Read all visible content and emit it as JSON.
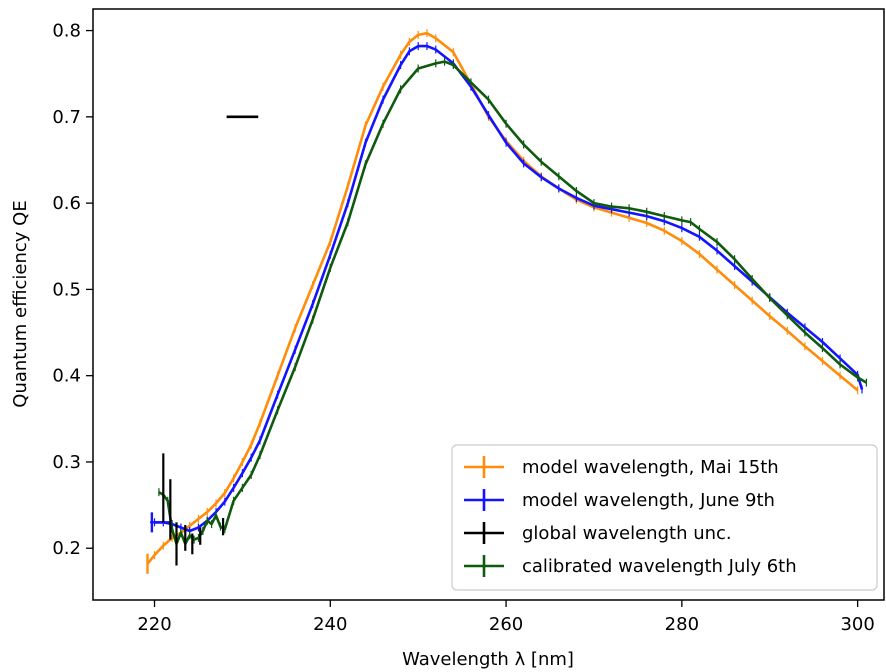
{
  "chart_data": {
    "type": "line",
    "title": "",
    "xlabel": "Wavelength λ [nm]",
    "ylabel": "Quantum efficiency QE",
    "xlim": [
      213,
      303
    ],
    "ylim": [
      0.14,
      0.825
    ],
    "xticks": [
      220,
      240,
      260,
      280,
      300
    ],
    "yticks": [
      0.2,
      0.3,
      0.4,
      0.5,
      0.6,
      0.7,
      0.8
    ],
    "grid": false,
    "legend_position": "lower-right",
    "global_unc": {
      "name": "global wavelength unc.",
      "color": "#000000",
      "y": 0.7,
      "x_range": [
        228.2,
        231.8
      ]
    },
    "series": [
      {
        "name": "model wavelength, Mai 15th",
        "color": "#ff8c0a",
        "x": [
          219.2,
          220.0,
          221.0,
          222.0,
          223.0,
          224.0,
          225.0,
          226.0,
          227.0,
          228.0,
          229.0,
          230.0,
          231.0,
          232.0,
          234.0,
          236.0,
          238.0,
          240.0,
          242.0,
          244.0,
          246.0,
          248.0,
          249.0,
          250.0,
          251.0,
          252.0,
          254.0,
          256.0,
          258.0,
          260.0,
          262.0,
          264.0,
          266.0,
          268.0,
          270.0,
          272.0,
          274.0,
          276.0,
          278.0,
          280.0,
          282.0,
          284.0,
          286.0,
          288.0,
          290.0,
          292.0,
          294.0,
          296.0,
          298.0,
          300.0
        ],
        "y": [
          0.182,
          0.192,
          0.203,
          0.212,
          0.218,
          0.226,
          0.234,
          0.242,
          0.252,
          0.264,
          0.281,
          0.3,
          0.32,
          0.345,
          0.4,
          0.455,
          0.505,
          0.555,
          0.62,
          0.69,
          0.735,
          0.772,
          0.787,
          0.795,
          0.797,
          0.791,
          0.775,
          0.738,
          0.7,
          0.672,
          0.649,
          0.631,
          0.617,
          0.604,
          0.595,
          0.589,
          0.583,
          0.577,
          0.568,
          0.556,
          0.541,
          0.523,
          0.505,
          0.487,
          0.469,
          0.452,
          0.434,
          0.417,
          0.4,
          0.383
        ]
      },
      {
        "name": "model wavelength, June 9th",
        "color": "#1414ff",
        "x": [
          220.0,
          221.0,
          222.0,
          223.0,
          224.0,
          225.0,
          226.0,
          227.0,
          228.0,
          229.0,
          230.0,
          231.0,
          232.0,
          234.0,
          236.0,
          238.0,
          240.0,
          242.0,
          244.0,
          246.0,
          248.0,
          249.0,
          250.0,
          251.0,
          252.0,
          254.0,
          256.0,
          258.0,
          260.0,
          262.0,
          264.0,
          266.0,
          268.0,
          270.0,
          272.0,
          274.0,
          276.0,
          278.0,
          280.0,
          282.0,
          284.0,
          286.0,
          288.0,
          290.0,
          292.0,
          294.0,
          296.0,
          298.0,
          300.0,
          300.5
        ],
        "y": [
          0.23,
          0.23,
          0.228,
          0.224,
          0.22,
          0.224,
          0.232,
          0.242,
          0.254,
          0.27,
          0.287,
          0.305,
          0.325,
          0.378,
          0.43,
          0.483,
          0.54,
          0.6,
          0.67,
          0.72,
          0.76,
          0.776,
          0.782,
          0.782,
          0.778,
          0.762,
          0.735,
          0.702,
          0.67,
          0.646,
          0.63,
          0.617,
          0.606,
          0.597,
          0.593,
          0.589,
          0.585,
          0.579,
          0.571,
          0.561,
          0.545,
          0.527,
          0.509,
          0.491,
          0.473,
          0.456,
          0.439,
          0.42,
          0.401,
          0.384
        ]
      },
      {
        "name": "calibrated wavelength July 6th",
        "color": "#0f5a0f",
        "x": [
          220.5,
          221.0,
          221.5,
          222.0,
          222.5,
          223.0,
          223.5,
          224.0,
          224.5,
          225.0,
          225.5,
          226.0,
          226.5,
          227.0,
          227.5,
          228.0,
          229.0,
          230.0,
          231.0,
          232.0,
          234.0,
          236.0,
          238.0,
          240.0,
          242.0,
          244.0,
          246.0,
          248.0,
          250.0,
          252.0,
          253.0,
          254.0,
          256.0,
          258.0,
          260.0,
          262.0,
          264.0,
          266.0,
          268.0,
          270.0,
          272.0,
          274.0,
          276.0,
          278.0,
          280.0,
          281.0,
          282.0,
          284.0,
          286.0,
          288.0,
          290.0,
          292.0,
          294.0,
          296.0,
          298.0,
          300.0,
          301.0
        ],
        "y": [
          0.265,
          0.262,
          0.255,
          0.222,
          0.205,
          0.218,
          0.205,
          0.215,
          0.21,
          0.212,
          0.22,
          0.232,
          0.228,
          0.238,
          0.225,
          0.222,
          0.255,
          0.27,
          0.285,
          0.308,
          0.36,
          0.41,
          0.465,
          0.525,
          0.578,
          0.645,
          0.692,
          0.732,
          0.756,
          0.762,
          0.764,
          0.76,
          0.74,
          0.72,
          0.692,
          0.668,
          0.648,
          0.631,
          0.614,
          0.6,
          0.596,
          0.594,
          0.59,
          0.585,
          0.58,
          0.578,
          0.57,
          0.555,
          0.535,
          0.512,
          0.49,
          0.47,
          0.45,
          0.432,
          0.413,
          0.398,
          0.392
        ]
      }
    ],
    "error_bars": [
      {
        "x": 221.0,
        "y": 0.27,
        "yerr": 0.04
      },
      {
        "x": 221.8,
        "y": 0.245,
        "yerr": 0.035
      },
      {
        "x": 222.5,
        "y": 0.205,
        "yerr": 0.025
      },
      {
        "x": 223.5,
        "y": 0.212,
        "yerr": 0.015
      },
      {
        "x": 224.3,
        "y": 0.205,
        "yerr": 0.012
      },
      {
        "x": 225.2,
        "y": 0.214,
        "yerr": 0.01
      },
      {
        "x": 227.8,
        "y": 0.225,
        "yerr": 0.01
      }
    ],
    "legend": [
      {
        "label": "model wavelength, Mai 15th",
        "color": "#ff8c0a"
      },
      {
        "label": "model wavelength, June 9th",
        "color": "#1414ff"
      },
      {
        "label": "global wavelength unc.",
        "color": "#000000"
      },
      {
        "label": "calibrated wavelength July 6th",
        "color": "#0f5a0f"
      }
    ]
  }
}
